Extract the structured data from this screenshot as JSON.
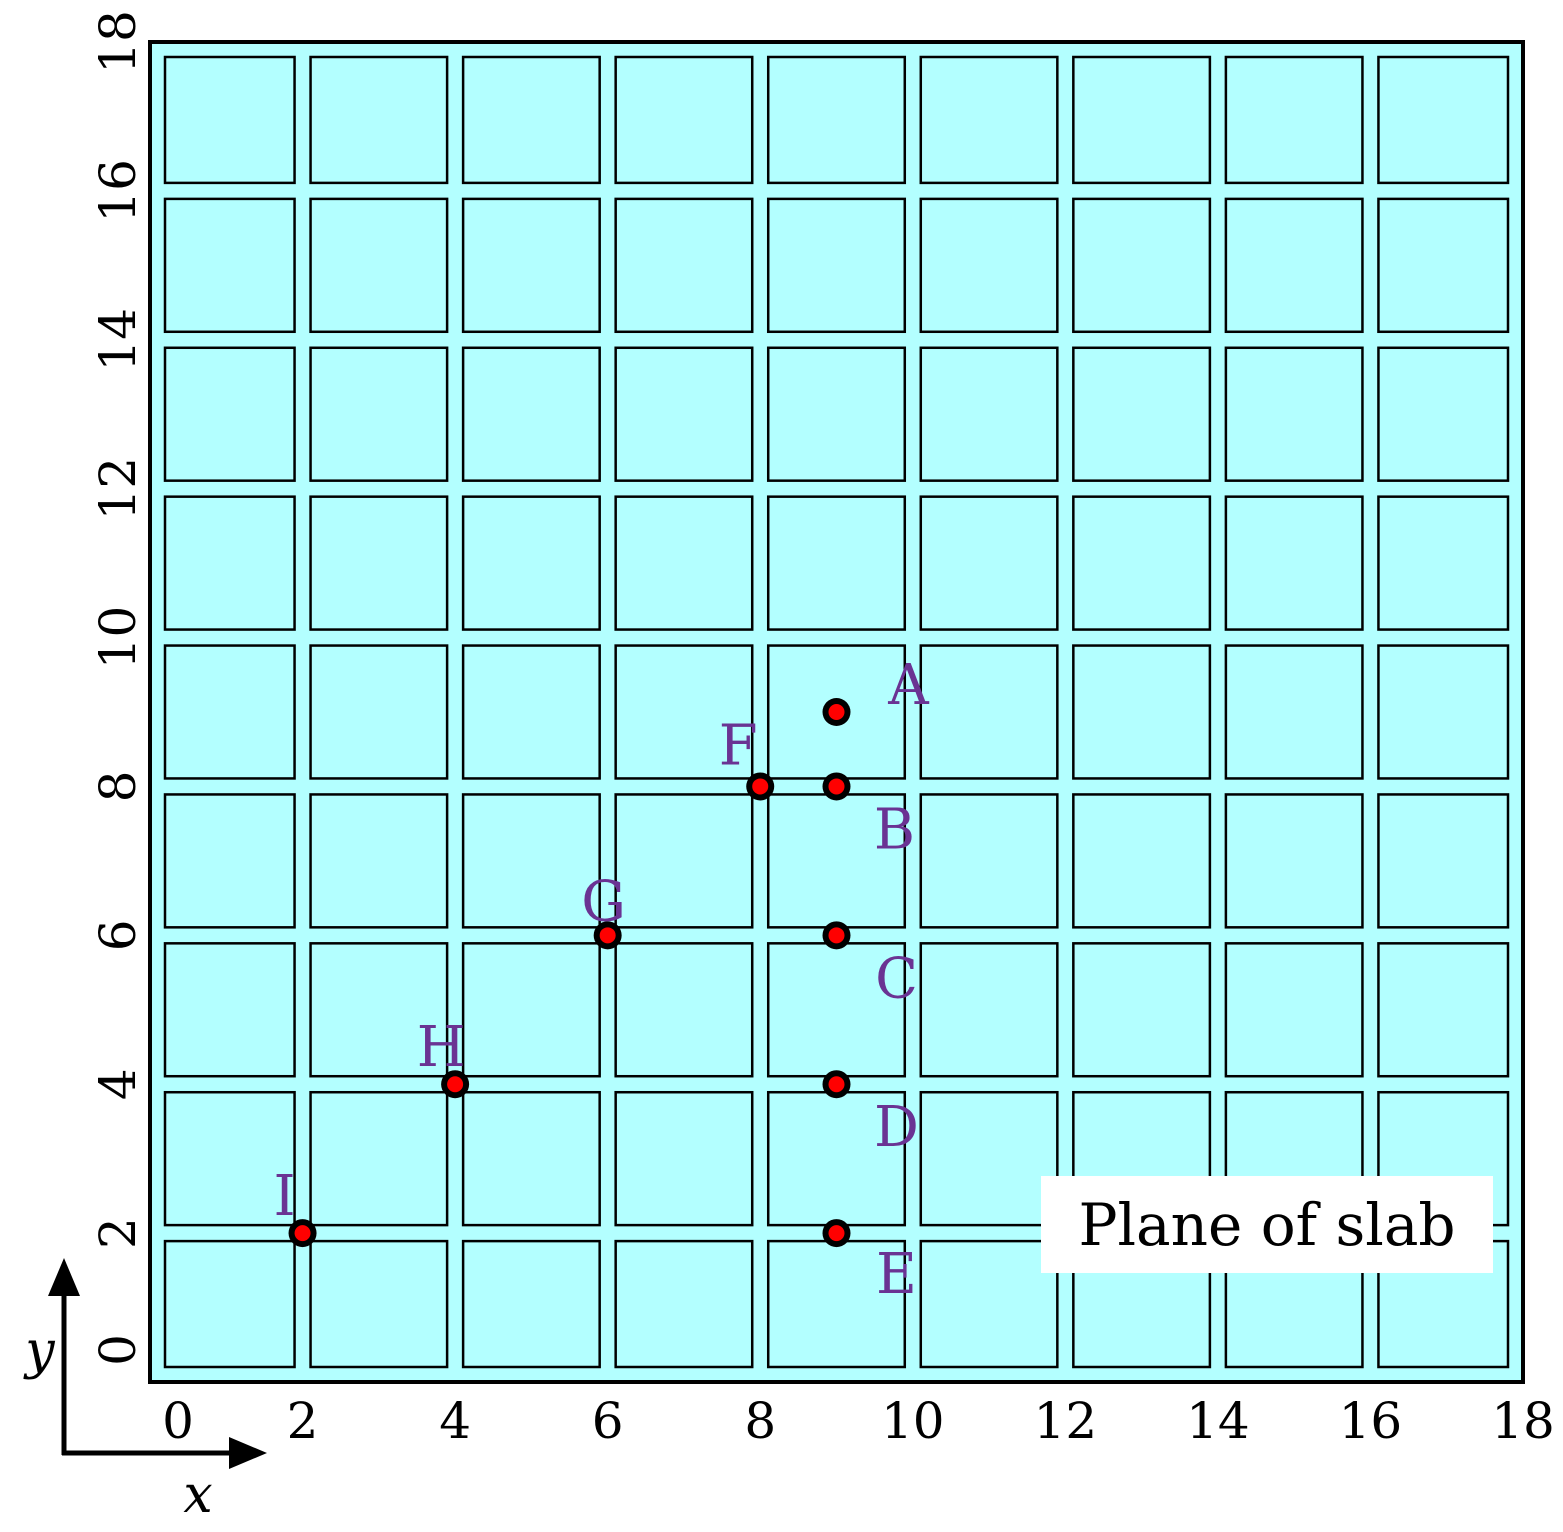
{
  "chart_data": {
    "type": "scatter",
    "xlim": [
      0,
      18
    ],
    "ylim": [
      0,
      18
    ],
    "x_ticks": [
      "0",
      "2",
      "4",
      "6",
      "8",
      "10",
      "12",
      "14",
      "16",
      "18"
    ],
    "y_ticks": [
      "0",
      "2",
      "4",
      "6",
      "8",
      "10",
      "12",
      "14",
      "16",
      "18"
    ],
    "grid_cells": {
      "columns": 9,
      "rows": 9
    },
    "points": [
      {
        "label": "A",
        "x": 9,
        "y": 9
      },
      {
        "label": "B",
        "x": 9,
        "y": 8
      },
      {
        "label": "C",
        "x": 9,
        "y": 6
      },
      {
        "label": "D",
        "x": 9,
        "y": 4
      },
      {
        "label": "E",
        "x": 9,
        "y": 2
      },
      {
        "label": "F",
        "x": 8,
        "y": 8
      },
      {
        "label": "G",
        "x": 6,
        "y": 6
      },
      {
        "label": "H",
        "x": 4,
        "y": 4
      },
      {
        "label": "I",
        "x": 2,
        "y": 2
      }
    ],
    "legend": "Plane of slab",
    "legend_position": "bottom-right",
    "axis_indicator": {
      "x_symbol": "x",
      "y_symbol": "y"
    },
    "colors": {
      "slab_fill": "#b3ffff",
      "outline": "#000000",
      "point_fill": "#ff0000",
      "label_color": "#6a3393"
    }
  }
}
